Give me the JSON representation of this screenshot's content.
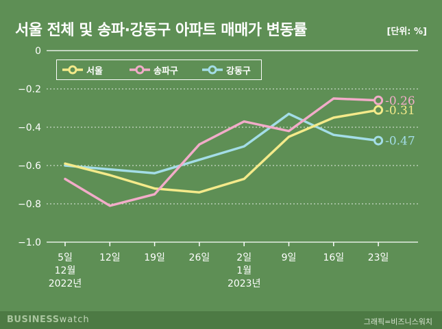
{
  "title": "서울 전체 및 송파·강동구 아파트 매매가 변동률",
  "unit": "[단위: %]",
  "footer": {
    "brand_bold": "BUSINESS",
    "brand_light": "watch",
    "credit": "그래픽=비즈니스워치"
  },
  "chart_data": {
    "type": "line",
    "title": "서울 전체 및 송파·강동구 아파트 매매가 변동률",
    "ylabel": "%",
    "ylim": [
      -1.0,
      0
    ],
    "yticks": [
      0,
      -0.2,
      -0.4,
      -0.6,
      -0.8,
      -1.0
    ],
    "ytick_labels": [
      "0",
      "−0.2",
      "−0.4",
      "−0.6",
      "−0.8",
      "−1.0"
    ],
    "categories": [
      [
        "5일",
        "12월",
        "2022년"
      ],
      [
        "12일"
      ],
      [
        "19일"
      ],
      [
        "26일"
      ],
      [
        "2일",
        "1월",
        "2023년"
      ],
      [
        "9일"
      ],
      [
        "16일"
      ],
      [
        "23일"
      ]
    ],
    "series": [
      {
        "name": "서울",
        "color": "#f4ea8a",
        "values": [
          -0.59,
          -0.65,
          -0.72,
          -0.74,
          -0.67,
          -0.45,
          -0.35,
          -0.31
        ],
        "end_label": "-0.31"
      },
      {
        "name": "송파구",
        "color": "#f2acc9",
        "values": [
          -0.67,
          -0.81,
          -0.75,
          -0.49,
          -0.37,
          -0.42,
          -0.25,
          -0.26
        ],
        "end_label": "-0.26"
      },
      {
        "name": "강동구",
        "color": "#a3dde7",
        "values": [
          -0.6,
          -0.62,
          -0.64,
          -0.57,
          -0.5,
          -0.33,
          -0.44,
          -0.47
        ],
        "end_label": "-0.47"
      }
    ],
    "legend": "top-left",
    "grid": true
  }
}
